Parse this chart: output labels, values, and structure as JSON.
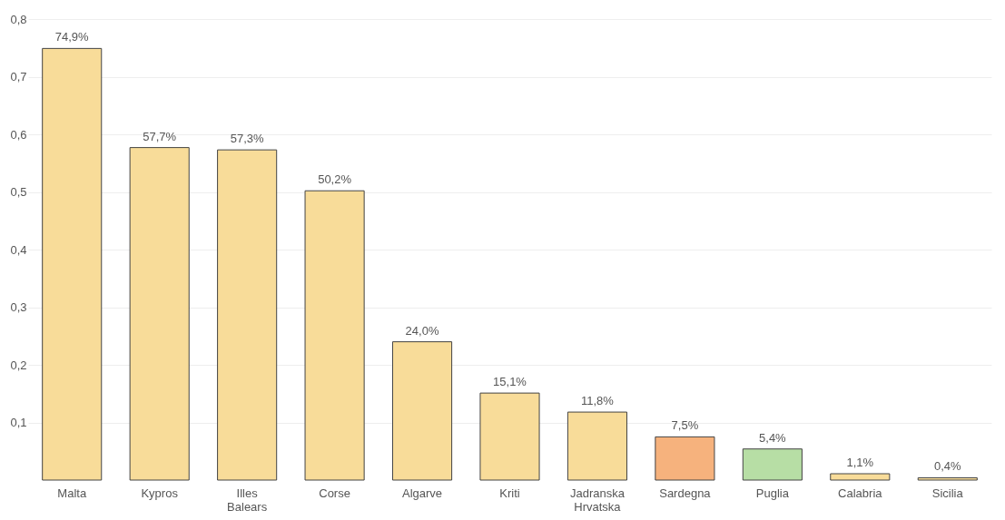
{
  "chart_data": {
    "type": "bar",
    "categories": [
      "Malta",
      "Kypros",
      "Illes Balears",
      "Corse",
      "Algarve",
      "Kriti",
      "Jadranska Hrvatska",
      "Sardegna",
      "Puglia",
      "Calabria",
      "Sicilia"
    ],
    "values": [
      0.749,
      0.577,
      0.573,
      0.502,
      0.24,
      0.151,
      0.118,
      0.075,
      0.054,
      0.011,
      0.004
    ],
    "colors": [
      "#f8dc99",
      "#f8dc99",
      "#f8dc99",
      "#f8dc99",
      "#f8dc99",
      "#f8dc99",
      "#f8dc99",
      "#f6b27d",
      "#b7dea5",
      "#f8dc99",
      "#f8dc99"
    ],
    "value_labels": [
      "74,9%",
      "57,7%",
      "57,3%",
      "50,2%",
      "24,0%",
      "15,1%",
      "11,8%",
      "7,5%",
      "5,4%",
      "1,1%",
      "0,4%"
    ],
    "ylim": [
      0,
      0.8
    ],
    "yticks": [
      {
        "value": 0.1,
        "label": "0,1"
      },
      {
        "value": 0.2,
        "label": "0,2"
      },
      {
        "value": 0.3,
        "label": "0,3"
      },
      {
        "value": 0.4,
        "label": "0,4"
      },
      {
        "value": 0.5,
        "label": "0,5"
      },
      {
        "value": 0.6,
        "label": "0,6"
      },
      {
        "value": 0.7,
        "label": "0,7"
      },
      {
        "value": 0.8,
        "label": "0,8"
      }
    ],
    "grid": "y"
  }
}
